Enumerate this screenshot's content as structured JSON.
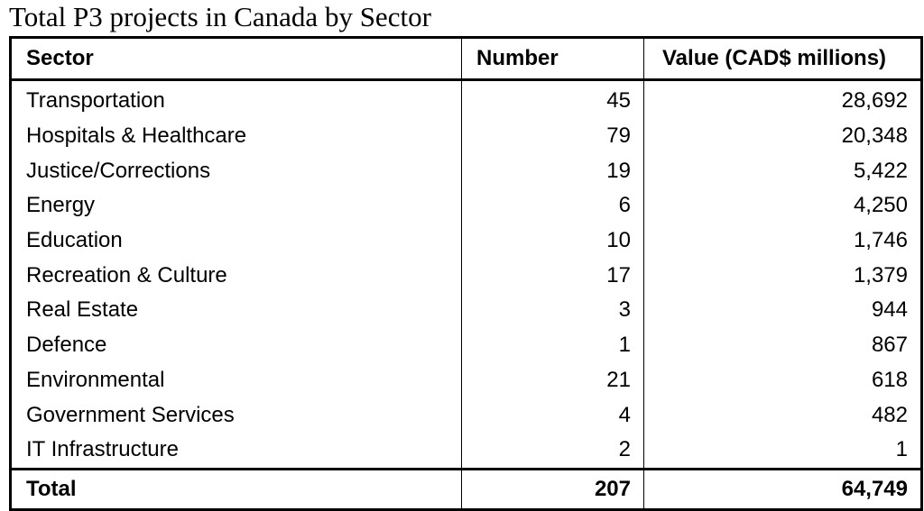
{
  "caption": "Total P3 projects in Canada by Sector",
  "table": {
    "headers": {
      "sector": "Sector",
      "number": "Number",
      "value": "Value (CAD$ millions)"
    },
    "rows": [
      {
        "sector": "Transportation",
        "number": "45",
        "value": "28,692"
      },
      {
        "sector": "Hospitals & Healthcare",
        "number": "79",
        "value": "20,348"
      },
      {
        "sector": "Justice/Corrections",
        "number": "19",
        "value": "5,422"
      },
      {
        "sector": "Energy",
        "number": "6",
        "value": "4,250"
      },
      {
        "sector": "Education",
        "number": "10",
        "value": "1,746"
      },
      {
        "sector": "Recreation & Culture",
        "number": "17",
        "value": "1,379"
      },
      {
        "sector": "Real Estate",
        "number": "3",
        "value": "944"
      },
      {
        "sector": "Defence",
        "number": "1",
        "value": "867"
      },
      {
        "sector": "Environmental",
        "number": "21",
        "value": "618"
      },
      {
        "sector": "Government Services",
        "number": "4",
        "value": "482"
      },
      {
        "sector": "IT Infrastructure",
        "number": "2",
        "value": "1"
      }
    ],
    "total": {
      "label": "Total",
      "number": "207",
      "value": "64,749"
    }
  }
}
